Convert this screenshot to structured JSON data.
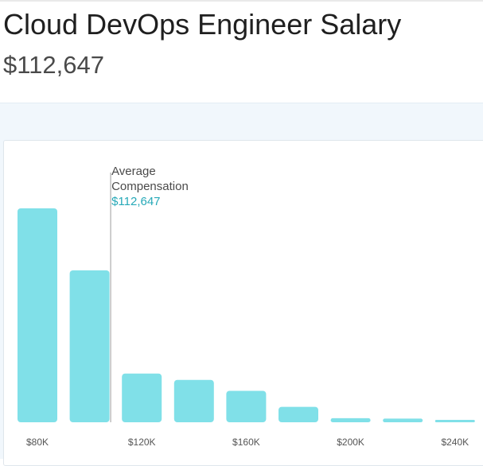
{
  "page": {
    "title": "Cloud DevOps Engineer Salary",
    "salary": "$112,647"
  },
  "colors": {
    "bar": "#80e0e8",
    "accent": "#27a9b8",
    "average_line": "#bdbdbd",
    "background_band": "#f1f7fc"
  },
  "chart_data": {
    "type": "bar",
    "title": "",
    "xlabel": "",
    "ylabel": "",
    "grid": false,
    "bin_width": 20000,
    "x": [
      80000,
      100000,
      120000,
      140000,
      160000,
      180000,
      200000,
      220000,
      240000
    ],
    "values": [
      100,
      71,
      22.8,
      19.8,
      14.7,
      7.2,
      1.9,
      1.7,
      0.6
    ],
    "ylim": [
      0,
      100
    ],
    "x_ticks": [
      {
        "value": 80000,
        "label": "$80K"
      },
      {
        "value": 120000,
        "label": "$120K"
      },
      {
        "value": 160000,
        "label": "$160K"
      },
      {
        "value": 200000,
        "label": "$200K"
      },
      {
        "value": 240000,
        "label": "$240K"
      }
    ],
    "average": {
      "value": 112647,
      "label_line1": "Average",
      "label_line2": "Compensation",
      "value_label": "$112,647"
    }
  }
}
